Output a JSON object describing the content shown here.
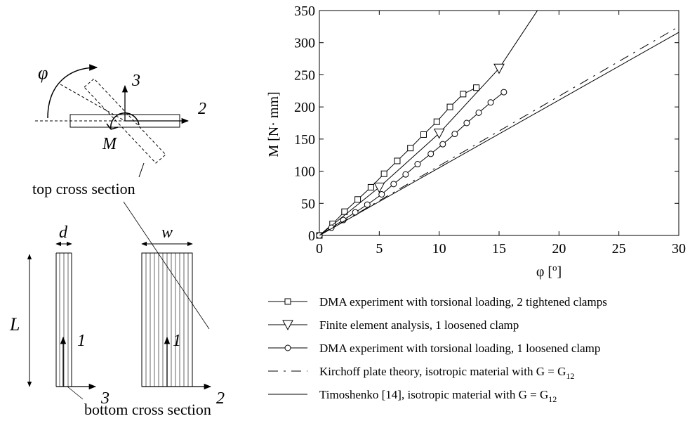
{
  "diagram": {
    "phi": "φ",
    "moment": "M",
    "axis_2": "2",
    "axis_3": "3",
    "axis_1": "1",
    "top_label": "top cross section",
    "bottom_label": "bottom cross section",
    "d": "d",
    "w": "w",
    "L": "L"
  },
  "chart_data": {
    "type": "line",
    "xlabel": "φ [°]",
    "xlabel_main": "φ [",
    "xlabel_sup": "o",
    "xlabel_end": "]",
    "ylabel": "M [N· mm]",
    "xlim": [
      0,
      30
    ],
    "ylim": [
      0,
      350
    ],
    "xticks": [
      0,
      5,
      10,
      15,
      20,
      25,
      30
    ],
    "yticks": [
      0,
      50,
      100,
      150,
      200,
      250,
      300,
      350
    ],
    "grid": false,
    "legend_position": "below",
    "series": [
      {
        "name": "DMA experiment with torsional loading, 2 tightened clamps",
        "marker": "square",
        "line": "solid",
        "x": [
          0,
          1.1,
          2.1,
          3.2,
          4.3,
          5.4,
          6.5,
          7.6,
          8.7,
          9.8,
          10.9,
          12.0,
          13.1
        ],
        "y": [
          0,
          18,
          37,
          56,
          75,
          96,
          116,
          136,
          157,
          177,
          200,
          220,
          230
        ]
      },
      {
        "name": "Finite element analysis, 1 loosened clamp",
        "marker": "triangle-down",
        "line": "solid",
        "x": [
          0,
          5,
          10,
          15,
          18.2
        ],
        "y": [
          0,
          75,
          159,
          260,
          350
        ]
      },
      {
        "name": "DMA experiment with torsional loading, 1 loosened clamp",
        "marker": "circle",
        "line": "solid",
        "x": [
          0,
          1.0,
          2.0,
          3.0,
          4.0,
          5.2,
          6.2,
          7.2,
          8.2,
          9.3,
          10.3,
          11.3,
          12.3,
          13.3,
          14.3,
          15.4
        ],
        "y": [
          0,
          12,
          24,
          36,
          48,
          64,
          80,
          95,
          111,
          127,
          142,
          158,
          175,
          191,
          207,
          223
        ]
      },
      {
        "name": "Kirchoff plate theory, isotropic material with G = G",
        "name_sub": "12",
        "marker": "none",
        "line": "dashdot",
        "x": [
          0,
          30
        ],
        "y": [
          0,
          325
        ]
      },
      {
        "name": "Timoshenko [14], isotropic material with G = G",
        "name_sub": "12",
        "marker": "none",
        "line": "solid",
        "x": [
          0,
          30
        ],
        "y": [
          0,
          316
        ]
      }
    ]
  }
}
